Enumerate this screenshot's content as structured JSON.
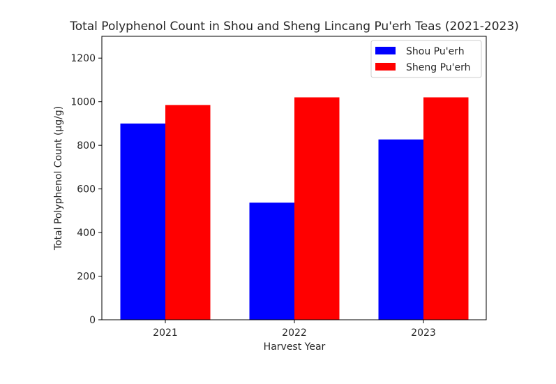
{
  "chart_data": {
    "type": "bar",
    "title": "Total Polyphenol Count in Shou and Sheng Lincang Pu'erh Teas (2021-2023)",
    "xlabel": "Harvest Year",
    "ylabel": "Total Polyphenol Count (µg/g)",
    "categories": [
      "2021",
      "2022",
      "2023"
    ],
    "series": [
      {
        "name": "Shou Pu'erh",
        "color": "#0000ff",
        "values": [
          900,
          537,
          827
        ]
      },
      {
        "name": "Sheng Pu'erh",
        "color": "#ff0000",
        "values": [
          985,
          1020,
          1020
        ]
      }
    ],
    "ylim": [
      0,
      1300
    ],
    "yticks": [
      "0",
      "200",
      "400",
      "600",
      "800",
      "1000",
      "1200"
    ],
    "grid": false,
    "legend_position": "top-right"
  }
}
